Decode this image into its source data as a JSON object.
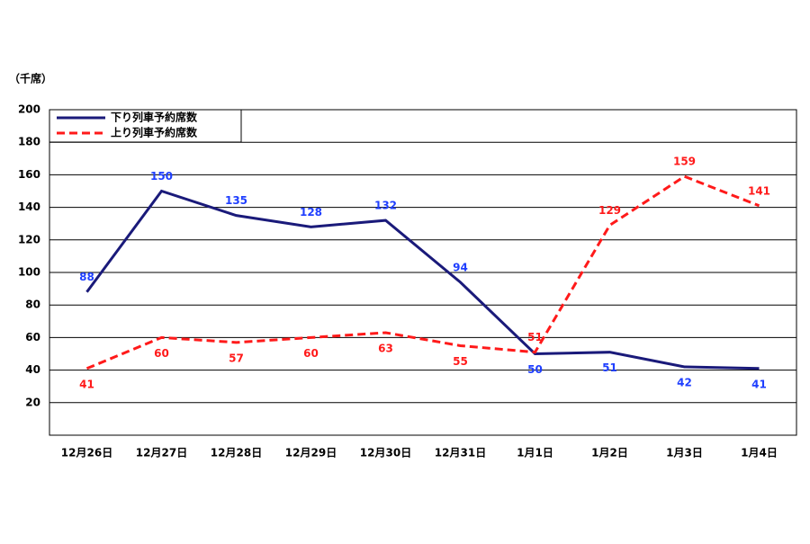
{
  "chart_data": {
    "type": "line",
    "y_unit": "（千席）",
    "categories": [
      "12月26日",
      "12月27日",
      "12月28日",
      "12月29日",
      "12月30日",
      "12月31日",
      "1月1日",
      "1月2日",
      "1月3日",
      "1月4日"
    ],
    "series": [
      {
        "name": "下り列車予約席数",
        "color": "#1a1a7a",
        "label_color": "#1f3fff",
        "dashed": false,
        "values": [
          88,
          150,
          135,
          128,
          132,
          94,
          50,
          51,
          42,
          41
        ]
      },
      {
        "name": "上り列車予約席数",
        "color": "#ff1a1a",
        "label_color": "#ff1a1a",
        "dashed": true,
        "values": [
          41,
          60,
          57,
          60,
          63,
          55,
          51,
          129,
          159,
          141
        ]
      }
    ],
    "ylim": [
      0,
      200
    ],
    "yticks": [
      20,
      40,
      60,
      80,
      100,
      120,
      140,
      160,
      180,
      200
    ],
    "grid": true,
    "legend": "upper left"
  }
}
